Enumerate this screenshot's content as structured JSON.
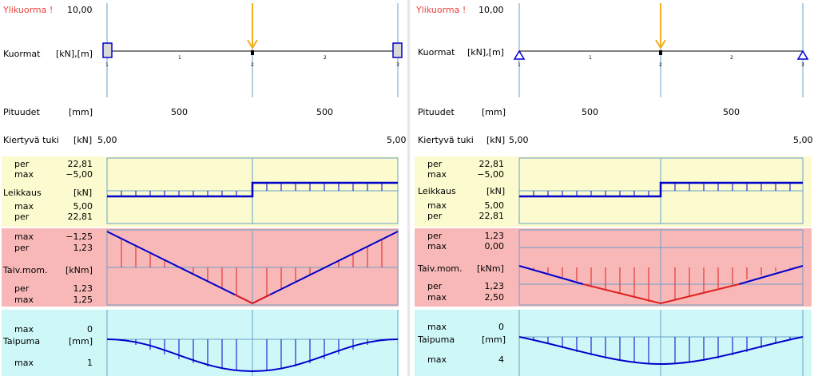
{
  "colors": {
    "warning": "#e8433e",
    "load_arrow": "#f0b020",
    "diagram_line": "#0000cc",
    "moment_neg": "#e02020",
    "shear_bg": "#fbfbcf",
    "moment_bg": "#f9b8b8",
    "deflection_bg": "#cef8f8",
    "grid": "#6aa0c8"
  },
  "panels": [
    {
      "warning": "Ylikuorma !",
      "load_value": "10,00",
      "loads_label": "Kuormat",
      "loads_unit": "[kN],[m]",
      "support_type": "clamped",
      "nodes": [
        "1",
        "2",
        "3"
      ],
      "spans": [
        "1",
        "2"
      ],
      "lengths_label": "Pituudet",
      "lengths_unit": "[mm]",
      "lengths": [
        "500",
        "500"
      ],
      "support_label": "Kiertyvä tuki",
      "support_unit": "[kN]",
      "support_values": [
        "5,00",
        "5,00"
      ],
      "shear": {
        "top_rows": [
          {
            "k": "per",
            "v": "22,81"
          },
          {
            "k": "max",
            "v": "−5,00"
          }
        ],
        "title": "Leikkaus",
        "unit": "[kN]",
        "bottom_rows": [
          {
            "k": "max",
            "v": "5,00"
          },
          {
            "k": "per",
            "v": "22,81"
          }
        ]
      },
      "moment": {
        "top_rows": [
          {
            "k": "max",
            "v": "−1,25"
          },
          {
            "k": "per",
            "v": "1,23"
          }
        ],
        "title": "Taiv.mom.",
        "unit": "[kNm]",
        "bottom_rows": [
          {
            "k": "per",
            "v": "1,23"
          },
          {
            "k": "max",
            "v": "1,25"
          }
        ]
      },
      "deflection": {
        "top_rows": [
          {
            "k": "max",
            "v": "0"
          }
        ],
        "title": "Taipuma",
        "unit": "[mm]",
        "bottom_rows": [
          {
            "k": "max",
            "v": "1"
          }
        ]
      }
    },
    {
      "warning": "Ylikuorma !",
      "load_value": "10,00",
      "loads_label": "Kuormat",
      "loads_unit": "[kN],[m]",
      "support_type": "pinned",
      "nodes": [
        "1",
        "2",
        "3"
      ],
      "spans": [
        "1",
        "2"
      ],
      "lengths_label": "Pituudet",
      "lengths_unit": "[mm]",
      "lengths": [
        "500",
        "500"
      ],
      "support_label": "Kiertyvä tuki",
      "support_unit": "[kN]",
      "support_values": [
        "5,00",
        "5,00"
      ],
      "shear": {
        "top_rows": [
          {
            "k": "per",
            "v": "22,81"
          },
          {
            "k": "max",
            "v": "−5,00"
          }
        ],
        "title": "Leikkaus",
        "unit": "[kN]",
        "bottom_rows": [
          {
            "k": "max",
            "v": "5,00"
          },
          {
            "k": "per",
            "v": "22,81"
          }
        ]
      },
      "moment": {
        "top_rows": [
          {
            "k": "per",
            "v": "1,23"
          },
          {
            "k": "max",
            "v": "0,00"
          }
        ],
        "title": "Taiv.mom.",
        "unit": "[kNm]",
        "bottom_rows": [
          {
            "k": "per",
            "v": "1,23"
          },
          {
            "k": "max",
            "v": "2,50"
          }
        ]
      },
      "deflection": {
        "top_rows": [
          {
            "k": "max",
            "v": "0"
          }
        ],
        "title": "Taipuma",
        "unit": "[mm]",
        "bottom_rows": [
          {
            "k": "max",
            "v": "4"
          }
        ]
      }
    }
  ]
}
